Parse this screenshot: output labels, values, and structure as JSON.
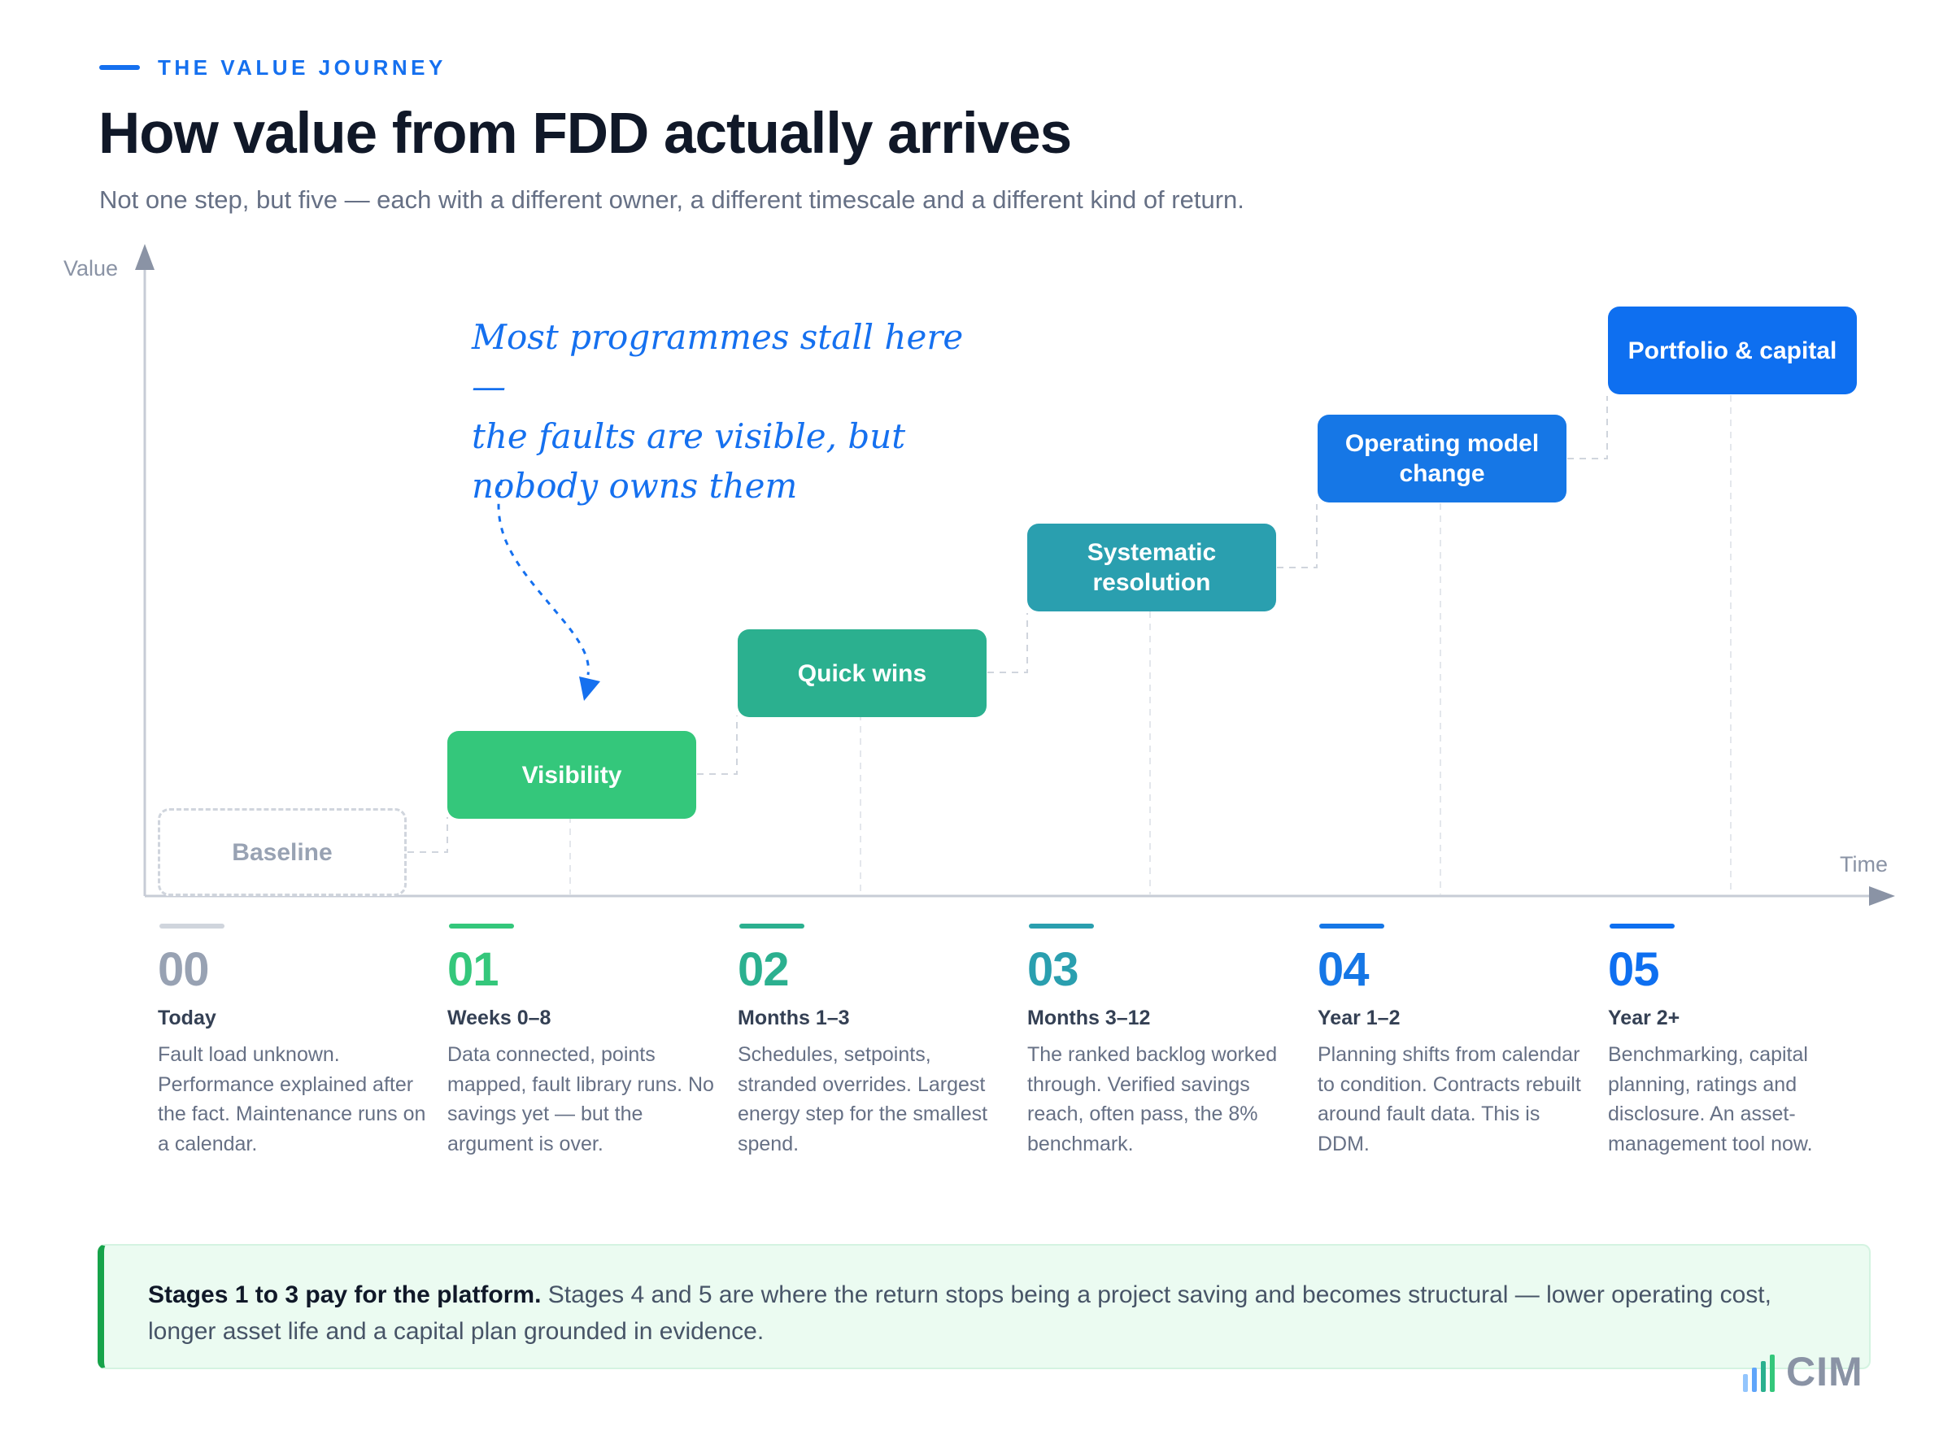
{
  "header": {
    "eyebrow": "THE VALUE JOURNEY",
    "title": "How value from FDD actually arrives",
    "subtitle": "Not one step, but five — each with a different owner, a different timescale and a different kind of return."
  },
  "axes": {
    "y_label": "Value",
    "x_label": "Time"
  },
  "stages": [
    {
      "label": "Baseline",
      "color": "#ffffff"
    },
    {
      "label": "Visibility",
      "color": "#34C77B"
    },
    {
      "label": "Quick wins",
      "color": "#2BB08F"
    },
    {
      "label": "Systematic resolution",
      "color": "#2A9FAF"
    },
    {
      "label": "Operating model change",
      "color": "#1677E6"
    },
    {
      "label": "Portfolio & capital",
      "color": "#0E6FF0"
    }
  ],
  "annotation": {
    "line1": "Most programmes stall here —",
    "line2": "the faults are visible, but",
    "line3": "nobody owns them"
  },
  "timeline": [
    {
      "num": "00",
      "when": "Today",
      "desc": "Fault load unknown. Performance explained after the fact. Maintenance runs on a calendar.",
      "color": "#98a2b3",
      "bar": "#d0d5dd"
    },
    {
      "num": "01",
      "when": "Weeks 0–8",
      "desc": "Data connected, points mapped, fault library runs. No savings yet — but the argument is over.",
      "color": "#34C77B",
      "bar": "#34C77B"
    },
    {
      "num": "02",
      "when": "Months 1–3",
      "desc": "Schedules, setpoints, stranded overrides. Largest energy step for the smallest spend.",
      "color": "#2BB08F",
      "bar": "#2BB08F"
    },
    {
      "num": "03",
      "when": "Months 3–12",
      "desc": "The ranked backlog worked through. Verified savings reach, often pass, the 8% benchmark.",
      "color": "#2A9FAF",
      "bar": "#2A9FAF"
    },
    {
      "num": "04",
      "when": "Year 1–2",
      "desc": "Planning shifts from calendar to condition. Contracts rebuilt around fault data. This is DDM.",
      "color": "#1677E6",
      "bar": "#1677E6"
    },
    {
      "num": "05",
      "when": "Year 2+",
      "desc": "Benchmarking, capital planning, ratings and disclosure. An asset-management tool now.",
      "color": "#0E6FF0",
      "bar": "#0E6FF0"
    }
  ],
  "callout": {
    "bold": "Stages 1 to 3 pay for the platform.",
    "text": " Stages 4 and 5 are where the return stops being a project saving and becomes structural — lower operating cost, longer asset life and a capital plan grounded in evidence."
  },
  "logo": {
    "text": "CIM"
  }
}
